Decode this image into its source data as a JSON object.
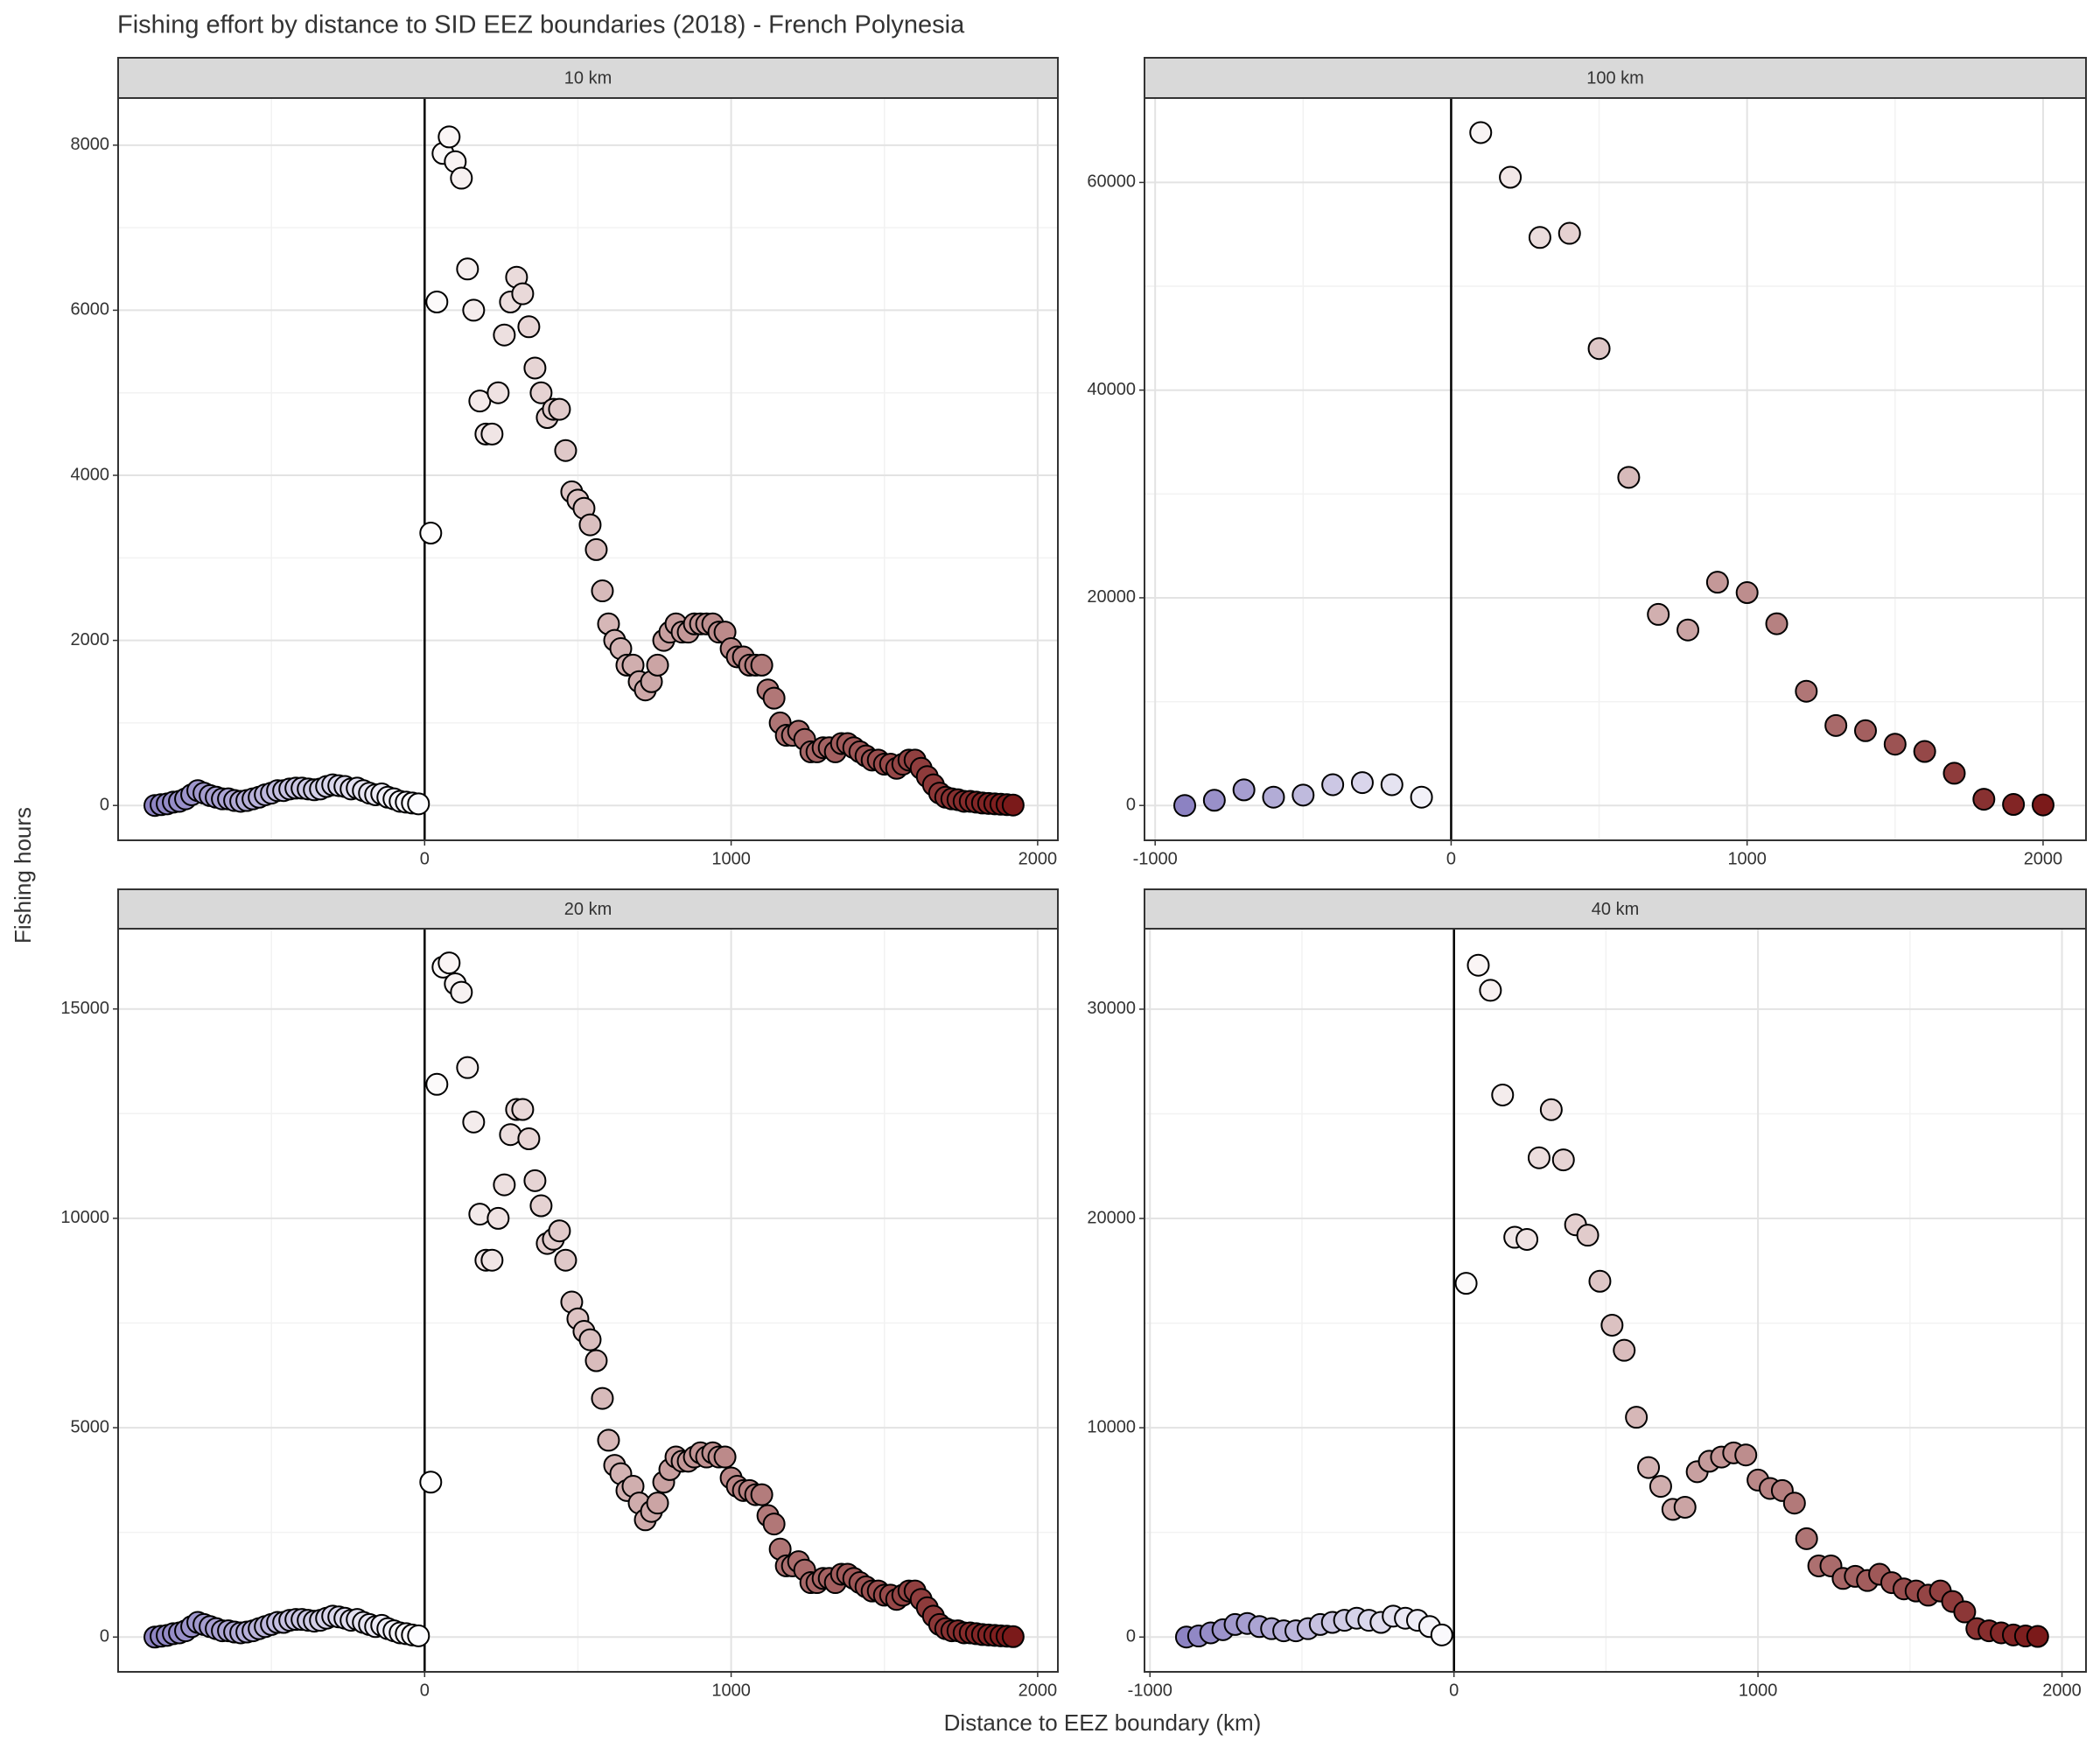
{
  "title": "Fishing effort by distance to SID EEZ boundaries (2018) - French Polynesia",
  "x_label": "Distance to EEZ boundary (km)",
  "y_label": "Fishing hours",
  "color_scale": {
    "low": "#8c82c2",
    "mid": "#ffffff",
    "high": "#7b1a1a"
  },
  "point_outline": "#000000",
  "grid": true,
  "chart_data": [
    {
      "type": "scatter",
      "title": "10 km",
      "x": [
        -880,
        -860,
        -840,
        -820,
        -800,
        -780,
        -760,
        -740,
        -720,
        -700,
        -680,
        -660,
        -640,
        -620,
        -600,
        -580,
        -560,
        -540,
        -520,
        -500,
        -480,
        -460,
        -440,
        -420,
        -400,
        -380,
        -360,
        -340,
        -320,
        -300,
        -280,
        -260,
        -240,
        -220,
        -200,
        -180,
        -160,
        -140,
        -120,
        -100,
        -80,
        -60,
        -40,
        -20,
        20,
        40,
        60,
        80,
        100,
        120,
        140,
        160,
        180,
        200,
        220,
        240,
        260,
        280,
        300,
        320,
        340,
        360,
        380,
        400,
        420,
        440,
        460,
        480,
        500,
        520,
        540,
        560,
        580,
        600,
        620,
        640,
        660,
        680,
        700,
        720,
        740,
        760,
        780,
        800,
        820,
        840,
        860,
        880,
        900,
        920,
        940,
        960,
        980,
        1000,
        1020,
        1040,
        1060,
        1080,
        1100,
        1120,
        1140,
        1160,
        1180,
        1200,
        1220,
        1240,
        1260,
        1280,
        1300,
        1320,
        1340,
        1360,
        1380,
        1400,
        1420,
        1440,
        1460,
        1480,
        1500,
        1520,
        1540,
        1560,
        1580,
        1600,
        1620,
        1640,
        1660,
        1680,
        1700,
        1720,
        1740,
        1760,
        1780,
        1800,
        1820,
        1840,
        1860,
        1880,
        1900,
        1920
      ],
      "values": [
        0,
        10,
        20,
        40,
        50,
        80,
        130,
        180,
        150,
        120,
        100,
        80,
        80,
        60,
        50,
        60,
        80,
        100,
        130,
        150,
        180,
        180,
        200,
        210,
        210,
        200,
        190,
        200,
        230,
        250,
        240,
        230,
        200,
        210,
        180,
        150,
        130,
        140,
        100,
        80,
        50,
        40,
        30,
        20,
        3300,
        6100,
        7900,
        8100,
        7800,
        7600,
        6500,
        6000,
        4900,
        4500,
        4500,
        5000,
        5700,
        6100,
        6400,
        6200,
        5800,
        5300,
        5000,
        4700,
        4800,
        4800,
        4300,
        3800,
        3700,
        3600,
        3400,
        3100,
        2600,
        2200,
        2000,
        1900,
        1700,
        1700,
        1500,
        1400,
        1500,
        1700,
        2000,
        2100,
        2200,
        2100,
        2100,
        2200,
        2200,
        2200,
        2200,
        2100,
        2100,
        1900,
        1800,
        1800,
        1700,
        1700,
        1700,
        1400,
        1300,
        1000,
        850,
        850,
        900,
        800,
        650,
        650,
        700,
        700,
        650,
        750,
        750,
        700,
        650,
        600,
        550,
        550,
        500,
        500,
        450,
        500,
        550,
        550,
        450,
        350,
        250,
        150,
        100,
        80,
        70,
        50,
        50,
        40,
        30,
        25,
        20,
        15,
        10,
        5
      ],
      "xlim": [
        -1000,
        2066
      ],
      "ylim": [
        -422,
        8571
      ],
      "xticks": [
        0,
        1000,
        2000
      ],
      "yticks": [
        0,
        2000,
        4000,
        6000,
        8000
      ],
      "xminor": [
        -500,
        500,
        1500
      ],
      "yminor": [
        1000,
        3000,
        5000,
        7000
      ],
      "vline": 0
    },
    {
      "type": "scatter",
      "title": "100 km",
      "x": [
        -900,
        -800,
        -700,
        -600,
        -500,
        -400,
        -300,
        -200,
        -100,
        100,
        200,
        300,
        400,
        500,
        600,
        700,
        800,
        900,
        1000,
        1100,
        1200,
        1300,
        1400,
        1500,
        1600,
        1700,
        1800,
        1900,
        2000
      ],
      "values": [
        0,
        500,
        1500,
        800,
        1000,
        2000,
        2200,
        2000,
        800,
        64800,
        60500,
        54700,
        55100,
        44000,
        31600,
        18400,
        16900,
        21500,
        20500,
        17500,
        11000,
        7700,
        7200,
        5900,
        5200,
        3100,
        600,
        100,
        50
      ],
      "xlim": [
        -1036,
        2145
      ],
      "ylim": [
        -3355,
        68129
      ],
      "xticks": [
        -1000,
        0,
        1000,
        2000
      ],
      "yticks": [
        0,
        20000,
        40000,
        60000
      ],
      "xminor": [
        -500,
        500,
        1500
      ],
      "yminor": [
        10000,
        30000,
        50000
      ],
      "vline": 0
    },
    {
      "type": "scatter",
      "title": "20 km",
      "x": [
        -880,
        -860,
        -840,
        -820,
        -800,
        -780,
        -760,
        -740,
        -720,
        -700,
        -680,
        -660,
        -640,
        -620,
        -600,
        -580,
        -560,
        -540,
        -520,
        -500,
        -480,
        -460,
        -440,
        -420,
        -400,
        -380,
        -360,
        -340,
        -320,
        -300,
        -280,
        -260,
        -240,
        -220,
        -200,
        -180,
        -160,
        -140,
        -120,
        -100,
        -80,
        -60,
        -40,
        -20,
        20,
        40,
        60,
        80,
        100,
        120,
        140,
        160,
        180,
        200,
        220,
        240,
        260,
        280,
        300,
        320,
        340,
        360,
        380,
        400,
        420,
        440,
        460,
        480,
        500,
        520,
        540,
        560,
        580,
        600,
        620,
        640,
        660,
        680,
        700,
        720,
        740,
        760,
        780,
        800,
        820,
        840,
        860,
        880,
        900,
        920,
        940,
        960,
        980,
        1000,
        1020,
        1040,
        1060,
        1080,
        1100,
        1120,
        1140,
        1160,
        1180,
        1200,
        1220,
        1240,
        1260,
        1280,
        1300,
        1320,
        1340,
        1360,
        1380,
        1400,
        1420,
        1440,
        1460,
        1480,
        1500,
        1520,
        1540,
        1560,
        1580,
        1600,
        1620,
        1640,
        1660,
        1680,
        1700,
        1720,
        1740,
        1760,
        1780,
        1800,
        1820,
        1840,
        1860,
        1880,
        1900,
        1920
      ],
      "values": [
        0,
        20,
        40,
        80,
        100,
        150,
        250,
        350,
        300,
        250,
        200,
        150,
        150,
        120,
        100,
        120,
        150,
        200,
        250,
        300,
        350,
        350,
        400,
        420,
        420,
        400,
        380,
        400,
        450,
        500,
        480,
        450,
        400,
        420,
        350,
        300,
        250,
        280,
        200,
        150,
        100,
        80,
        50,
        30,
        3700,
        13200,
        16000,
        16100,
        15600,
        15400,
        13600,
        12300,
        10100,
        9000,
        9000,
        10000,
        10800,
        12000,
        12600,
        12600,
        11900,
        10900,
        10300,
        9400,
        9500,
        9700,
        9000,
        8000,
        7600,
        7300,
        7100,
        6600,
        5700,
        4700,
        4100,
        3900,
        3500,
        3600,
        3200,
        2800,
        3000,
        3200,
        3700,
        4000,
        4300,
        4200,
        4200,
        4300,
        4400,
        4300,
        4400,
        4300,
        4300,
        3800,
        3600,
        3500,
        3500,
        3400,
        3400,
        2900,
        2700,
        2100,
        1700,
        1700,
        1800,
        1600,
        1300,
        1300,
        1400,
        1400,
        1300,
        1500,
        1500,
        1400,
        1300,
        1200,
        1100,
        1100,
        1000,
        1000,
        900,
        1000,
        1100,
        1100,
        900,
        700,
        500,
        300,
        200,
        150,
        150,
        100,
        100,
        80,
        60,
        50,
        40,
        30,
        20,
        10
      ],
      "xlim": [
        -1000,
        2066
      ],
      "ylim": [
        -831,
        16917
      ],
      "xticks": [
        0,
        1000,
        2000
      ],
      "yticks": [
        0,
        5000,
        10000,
        15000
      ],
      "xminor": [
        -500,
        500,
        1500
      ],
      "yminor": [
        2500,
        7500,
        12500
      ],
      "vline": 0
    },
    {
      "type": "scatter",
      "title": "40 km",
      "x": [
        -880,
        -840,
        -800,
        -760,
        -720,
        -680,
        -640,
        -600,
        -560,
        -520,
        -480,
        -440,
        -400,
        -360,
        -320,
        -280,
        -240,
        -200,
        -160,
        -120,
        -80,
        -40,
        40,
        80,
        120,
        160,
        200,
        240,
        280,
        320,
        360,
        400,
        440,
        480,
        520,
        560,
        600,
        640,
        680,
        720,
        760,
        800,
        840,
        880,
        920,
        960,
        1000,
        1040,
        1080,
        1120,
        1160,
        1200,
        1240,
        1280,
        1320,
        1360,
        1400,
        1440,
        1480,
        1520,
        1560,
        1600,
        1640,
        1680,
        1720,
        1760,
        1800,
        1840,
        1880,
        1920
      ],
      "values": [
        0,
        50,
        200,
        350,
        600,
        650,
        500,
        400,
        300,
        300,
        400,
        600,
        700,
        800,
        900,
        800,
        700,
        1000,
        900,
        800,
        500,
        100,
        16900,
        32100,
        30900,
        25900,
        19100,
        19000,
        22900,
        25200,
        22800,
        19700,
        19200,
        17000,
        14900,
        13700,
        10500,
        8100,
        7200,
        6100,
        6200,
        7900,
        8400,
        8600,
        8800,
        8700,
        7500,
        7100,
        7000,
        6400,
        4700,
        3400,
        3400,
        2800,
        2900,
        2700,
        3000,
        2600,
        2300,
        2200,
        2000,
        2200,
        1700,
        1200,
        400,
        300,
        200,
        100,
        50,
        30
      ],
      "xlim": [
        -1018,
        2079
      ],
      "ylim": [
        -1663,
        33845
      ],
      "xticks": [
        -1000,
        0,
        1000,
        2000
      ],
      "yticks": [
        0,
        10000,
        20000,
        30000
      ],
      "xminor": [
        -500,
        500,
        1500
      ],
      "yminor": [
        5000,
        15000,
        25000
      ],
      "vline": 0
    }
  ]
}
